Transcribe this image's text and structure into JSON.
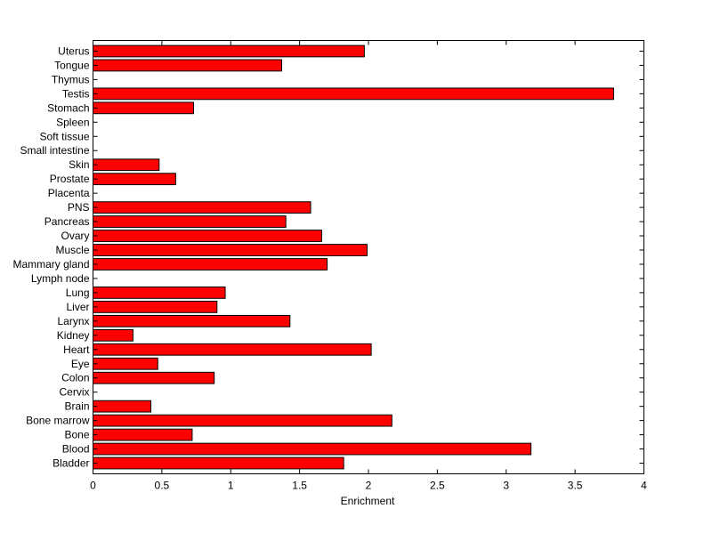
{
  "chart_data": {
    "type": "bar",
    "orientation": "horizontal",
    "title": "",
    "xlabel": "Enrichment",
    "ylabel": "",
    "xlim": [
      0,
      4
    ],
    "x_ticks": [
      0,
      0.5,
      1,
      1.5,
      2,
      2.5,
      3,
      3.5,
      4
    ],
    "x_tick_labels": [
      "0",
      "0.5",
      "1",
      "1.5",
      "2",
      "2.5",
      "3",
      "3.5",
      "4"
    ],
    "grid": false,
    "bar_color": "#ff0000",
    "categories": [
      "Bladder",
      "Blood",
      "Bone",
      "Bone marrow",
      "Brain",
      "Cervix",
      "Colon",
      "Eye",
      "Heart",
      "Kidney",
      "Larynx",
      "Liver",
      "Lung",
      "Lymph node",
      "Mammary gland",
      "Muscle",
      "Ovary",
      "Pancreas",
      "PNS",
      "Placenta",
      "Prostate",
      "Skin",
      "Small intestine",
      "Soft tissue",
      "Spleen",
      "Stomach",
      "Testis",
      "Thymus",
      "Tongue",
      "Uterus"
    ],
    "values": [
      1.82,
      3.18,
      0.72,
      2.17,
      0.42,
      0,
      0.88,
      0.47,
      2.02,
      0.29,
      1.43,
      0.9,
      0.96,
      0,
      1.7,
      1.99,
      1.66,
      1.4,
      1.58,
      0,
      0.6,
      0.48,
      0,
      0,
      0,
      0.73,
      3.78,
      0,
      1.37,
      1.97
    ]
  }
}
